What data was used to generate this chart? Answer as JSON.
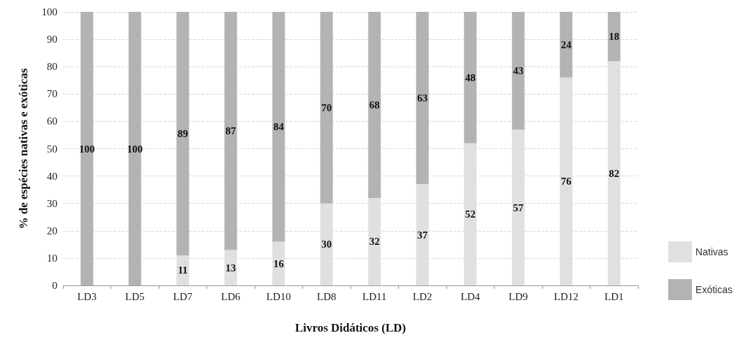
{
  "chart_data": {
    "type": "bar",
    "stacked": true,
    "xlabel": "Livros Didáticos (LD)",
    "ylabel": "% de espécies nativas e exóticas",
    "categories": [
      "LD3",
      "LD5",
      "LD7",
      "LD6",
      "LD10",
      "LD8",
      "LD11",
      "LD2",
      "LD4",
      "LD9",
      "LD12",
      "LD1"
    ],
    "series": [
      {
        "name": "Nativas",
        "color": "#e0e0e0",
        "values": [
          0,
          0,
          11,
          13,
          16,
          30,
          32,
          37,
          52,
          57,
          76,
          82
        ],
        "value_labels": [
          null,
          null,
          "11",
          "13",
          "16",
          "30",
          "32",
          "37",
          "52",
          "57",
          "76",
          "82"
        ]
      },
      {
        "name": "Exóticas",
        "color": "#b3b3b3",
        "values": [
          100,
          100,
          89,
          87,
          84,
          70,
          68,
          63,
          48,
          43,
          24,
          18
        ],
        "value_labels": [
          "100",
          "100",
          "89",
          "87",
          "84",
          "70",
          "68",
          "63",
          "48",
          "43",
          "24",
          "18"
        ]
      }
    ],
    "ylim": [
      0,
      100
    ],
    "yticks": [
      0,
      10,
      20,
      30,
      40,
      50,
      60,
      70,
      80,
      90,
      100
    ],
    "grid": "y",
    "legend": "right"
  }
}
